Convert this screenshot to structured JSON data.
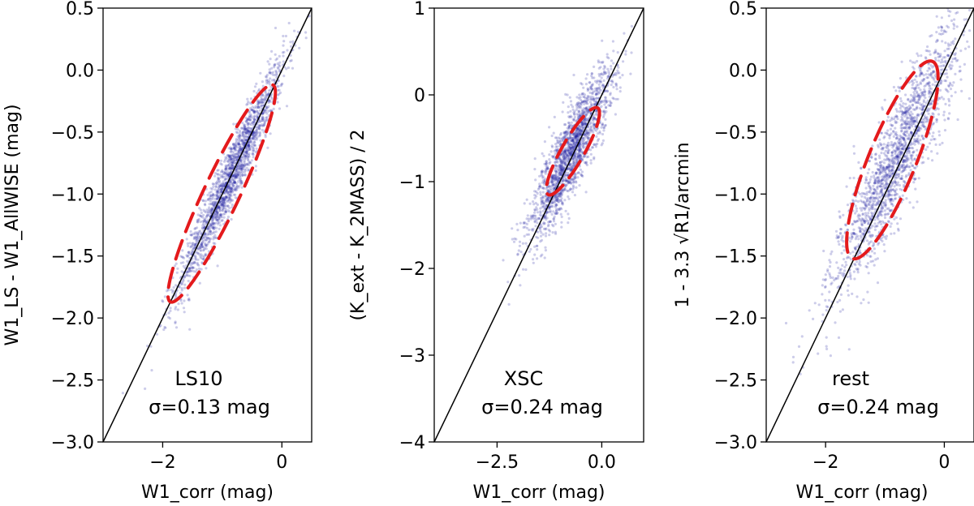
{
  "chart_data": [
    {
      "type": "scatter",
      "xlabel": "W1_corr (mag)",
      "ylabel": "W1_LS - W1_AllWISE (mag)",
      "xlim": [
        -3.0,
        0.5
      ],
      "ylim": [
        -3.0,
        0.5
      ],
      "xticks": [
        -2,
        0
      ],
      "xtick_labels": [
        "−2",
        "0"
      ],
      "yticks": [
        0.5,
        0.0,
        -0.5,
        -1.0,
        -1.5,
        -2.0,
        -2.5,
        -3.0
      ],
      "ytick_labels": [
        "0.5",
        "0.0",
        "−0.5",
        "−1.0",
        "−1.5",
        "−2.0",
        "−2.5",
        "−3.0"
      ],
      "annotation": [
        "LS10",
        "σ=0.13 mag"
      ],
      "reference_line": {
        "x": [
          -3.0,
          0.5
        ],
        "y": [
          -3.0,
          0.5
        ],
        "color": "#000000"
      },
      "ellipse": {
        "center": [
          -1.0,
          -0.98
        ],
        "endpoint_lower": [
          -1.87,
          -1.87
        ],
        "endpoint_upper": [
          -0.15,
          -0.12
        ],
        "minor_half_width": 0.3,
        "color": "#e41a1c",
        "style": "dashed"
      },
      "point_cloud": {
        "slope": 1.0,
        "intercept": 0.0,
        "x_mean": -0.85,
        "x_sd": 0.45,
        "scatter_sd": 0.13,
        "color": "#1a1aa0"
      }
    },
    {
      "type": "scatter",
      "xlabel": "W1_corr (mag)",
      "ylabel": "(K_ext - K_2MASS) / 2",
      "xlim": [
        -4.0,
        1.0
      ],
      "ylim": [
        -4.0,
        1.0
      ],
      "xticks": [
        -2.5,
        0.0
      ],
      "xtick_labels": [
        "−2.5",
        "0.0"
      ],
      "yticks": [
        1,
        0,
        -1,
        -2,
        -3,
        -4
      ],
      "ytick_labels": [
        "1",
        "0",
        "−1",
        "−2",
        "−3",
        "−4"
      ],
      "annotation": [
        "XSC",
        "σ=0.24 mag"
      ],
      "reference_line": {
        "x": [
          -4.0,
          1.0
        ],
        "y": [
          -4.0,
          1.0
        ],
        "color": "#000000"
      },
      "ellipse": {
        "center": [
          -0.7,
          -0.65
        ],
        "endpoint_lower": [
          -1.28,
          -1.15
        ],
        "endpoint_upper": [
          -0.1,
          -0.15
        ],
        "minor_half_width": 0.27,
        "color": "#e41a1c",
        "style": "dashed"
      },
      "point_cloud": {
        "slope": 0.85,
        "intercept": -0.05,
        "x_mean": -0.75,
        "x_sd": 0.5,
        "scatter_sd": 0.24,
        "color": "#1a1aa0"
      }
    },
    {
      "type": "scatter",
      "xlabel": "W1_corr (mag)",
      "ylabel": "1 - 3.3 √R1/arcmin",
      "xlim": [
        -3.0,
        0.5
      ],
      "ylim": [
        -3.0,
        0.5
      ],
      "xticks": [
        -2,
        0
      ],
      "xtick_labels": [
        "−2",
        "0"
      ],
      "yticks": [
        0.5,
        0.0,
        -0.5,
        -1.0,
        -1.5,
        -2.0,
        -2.5,
        -3.0
      ],
      "ytick_labels": [
        "0.5",
        "0.0",
        "−0.5",
        "−1.0",
        "−1.5",
        "−2.0",
        "−2.5",
        "−3.0"
      ],
      "annotation": [
        "rest",
        "σ=0.24 mag"
      ],
      "reference_line": {
        "x": [
          -3.0,
          0.5
        ],
        "y": [
          -3.0,
          0.5
        ],
        "color": "#000000"
      },
      "ellipse": {
        "center": [
          -0.9,
          -0.7
        ],
        "endpoint_lower": [
          -1.55,
          -1.52
        ],
        "endpoint_upper": [
          -0.2,
          0.07
        ],
        "minor_half_width": 0.4,
        "color": "#e41a1c",
        "style": "dashed"
      },
      "point_cloud": {
        "slope": 0.9,
        "intercept": 0.0,
        "x_mean": -0.8,
        "x_sd": 0.55,
        "scatter_sd": 0.24,
        "color": "#1a1aa0"
      }
    }
  ]
}
